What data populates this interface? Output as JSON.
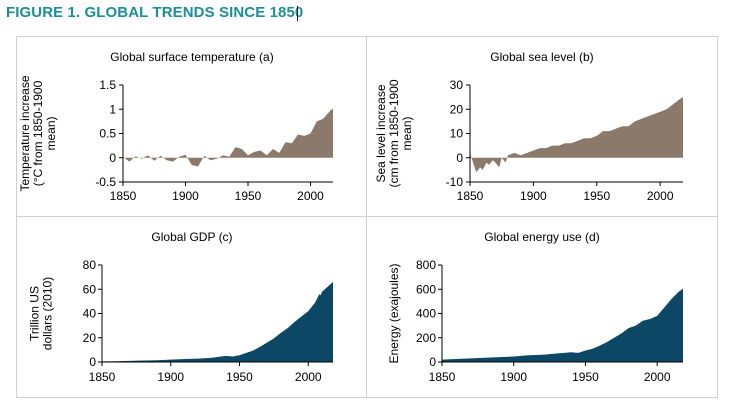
{
  "figure_title": "FIGURE 1. GLOBAL TRENDS SINCE 1850",
  "colors": {
    "title": "#1b8f96",
    "temp_fill": "#8b7a6b",
    "sea_fill": "#8b7a6b",
    "gdp_fill": "#0c4866",
    "energy_fill": "#0c4866"
  },
  "chart_data": [
    {
      "id": "temp",
      "type": "area",
      "title": "Global surface temperature (a)",
      "ylabel_lines": [
        "Temperature increase",
        "(°C from 1850-1900",
        "mean)"
      ],
      "xlim": [
        1850,
        2018
      ],
      "ylim": [
        -0.5,
        1.5
      ],
      "xticks": [
        1850,
        1900,
        1950,
        2000
      ],
      "yticks": [
        -0.5,
        0,
        0.5,
        1,
        1.5
      ],
      "ytick_labels": [
        "-0.5",
        "0",
        "0.5",
        "1",
        "1.5"
      ],
      "x": [
        1850,
        1855,
        1860,
        1865,
        1870,
        1875,
        1880,
        1885,
        1890,
        1895,
        1900,
        1905,
        1910,
        1915,
        1920,
        1925,
        1930,
        1935,
        1940,
        1945,
        1950,
        1955,
        1960,
        1965,
        1970,
        1975,
        1980,
        1985,
        1990,
        1995,
        2000,
        2005,
        2010,
        2015,
        2018
      ],
      "y": [
        0.02,
        -0.08,
        0.03,
        -0.02,
        0.05,
        -0.06,
        0.04,
        -0.05,
        -0.08,
        0.02,
        0.06,
        -0.15,
        -0.18,
        0.04,
        -0.05,
        -0.02,
        0.05,
        0.02,
        0.22,
        0.18,
        0.05,
        0.12,
        0.15,
        0.05,
        0.18,
        0.1,
        0.32,
        0.3,
        0.48,
        0.45,
        0.5,
        0.75,
        0.8,
        0.95,
        1.02
      ]
    },
    {
      "id": "sea",
      "type": "area",
      "title": "Global sea level (b)",
      "ylabel_lines": [
        "Sea level increase",
        "(cm from 1850-1900",
        "mean)"
      ],
      "xlim": [
        1850,
        2018
      ],
      "ylim": [
        -10,
        30
      ],
      "xticks": [
        1850,
        1900,
        1950,
        2000
      ],
      "yticks": [
        -10,
        0,
        10,
        20,
        30
      ],
      "ytick_labels": [
        "-10",
        "0",
        "10",
        "20",
        "30"
      ],
      "x": [
        1850,
        1853,
        1855,
        1858,
        1860,
        1863,
        1865,
        1868,
        1870,
        1873,
        1875,
        1878,
        1880,
        1885,
        1890,
        1895,
        1900,
        1905,
        1910,
        1915,
        1920,
        1925,
        1930,
        1935,
        1940,
        1945,
        1950,
        1955,
        1960,
        1965,
        1970,
        1975,
        1980,
        1985,
        1990,
        1995,
        2000,
        2005,
        2010,
        2015,
        2018
      ],
      "y": [
        2,
        -3,
        -6,
        -4,
        -5,
        -2,
        -3,
        -1,
        -2,
        -4,
        0,
        -2,
        1,
        2,
        1,
        2,
        3,
        4,
        4,
        5,
        5,
        6,
        6,
        7,
        8,
        8,
        9,
        11,
        11,
        12,
        13,
        13,
        15,
        16,
        17,
        18,
        19,
        20,
        22,
        24,
        25
      ]
    },
    {
      "id": "gdp",
      "type": "area",
      "title": "Global GDP (c)",
      "ylabel_lines": [
        "Trillion US",
        "dollars (2010)"
      ],
      "xlim": [
        1850,
        2018
      ],
      "ylim": [
        0,
        80
      ],
      "xticks": [
        1850,
        1900,
        1950,
        2000
      ],
      "yticks": [
        0,
        20,
        40,
        60,
        80
      ],
      "ytick_labels": [
        "0",
        "20",
        "40",
        "60",
        "80"
      ],
      "x": [
        1850,
        1860,
        1870,
        1880,
        1890,
        1900,
        1910,
        1920,
        1930,
        1940,
        1945,
        1950,
        1955,
        1960,
        1965,
        1970,
        1975,
        1980,
        1985,
        1990,
        1995,
        2000,
        2005,
        2008,
        2009,
        2010,
        2015,
        2018
      ],
      "y": [
        0.5,
        0.7,
        0.9,
        1.2,
        1.5,
        2,
        2.5,
        2.8,
        3.5,
        5,
        4.5,
        5.5,
        7.5,
        9.5,
        12.5,
        16,
        19.5,
        24,
        28,
        33,
        37.5,
        42,
        49,
        56,
        55,
        58,
        63,
        66
      ]
    },
    {
      "id": "energy",
      "type": "area",
      "title": "Global energy use (d)",
      "ylabel_lines": [
        "Energy (exajoules)"
      ],
      "xlim": [
        1850,
        2018
      ],
      "ylim": [
        0,
        800
      ],
      "xticks": [
        1850,
        1900,
        1950,
        2000
      ],
      "yticks": [
        0,
        200,
        400,
        600,
        800
      ],
      "ytick_labels": [
        "0",
        "200",
        "400",
        "600",
        "800"
      ],
      "x": [
        1850,
        1860,
        1870,
        1880,
        1890,
        1900,
        1910,
        1920,
        1930,
        1940,
        1945,
        1950,
        1955,
        1960,
        1965,
        1970,
        1975,
        1980,
        1985,
        1990,
        1995,
        2000,
        2005,
        2010,
        2015,
        2018
      ],
      "y": [
        20,
        25,
        30,
        35,
        40,
        45,
        55,
        60,
        70,
        80,
        75,
        95,
        110,
        135,
        165,
        200,
        235,
        280,
        300,
        340,
        355,
        380,
        450,
        520,
        580,
        605
      ]
    }
  ]
}
